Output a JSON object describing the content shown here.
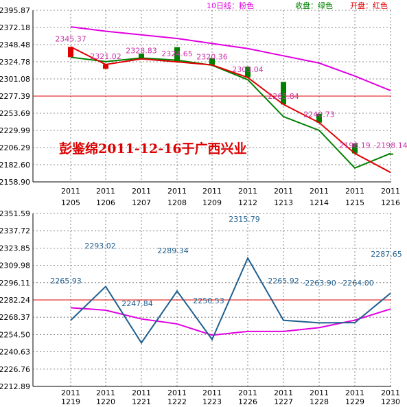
{
  "legend": {
    "ma10": "10日线：粉色",
    "close": "收盘：绿色",
    "open": "开盘：红色"
  },
  "annotation": "彭鉴绵2011-12-16于广西兴业",
  "colors": {
    "ma": "#e000e0",
    "close_line": "#008000",
    "open_line": "#e00000",
    "candle_down": "#008000",
    "candle_up": "#e00000",
    "blue_line": "#1f5f8f",
    "blue_label": "#1f5f8f",
    "pink_label": "#cc33aa",
    "ref_line": "#e00000",
    "grid": "#666666",
    "annotation": "#dd0000"
  },
  "chart_data": [
    {
      "type": "candlestick",
      "ylim": [
        2158.9,
        2395.87
      ],
      "yticks": [
        "2395.87",
        "2372.18",
        "2348.48",
        "2324.78",
        "2301.08",
        "2277.39",
        "2253.69",
        "2229.99",
        "2206.29",
        "2182.60",
        "2158.90"
      ],
      "x_top": [
        "2011",
        "2011",
        "2011",
        "2011",
        "2011",
        "2011",
        "2011",
        "2011",
        "2011",
        "2011"
      ],
      "x_bottom": [
        "1205",
        "1206",
        "1207",
        "1208",
        "1209",
        "1212",
        "1213",
        "1214",
        "1215",
        "1216"
      ],
      "open": [
        2331.0,
        2315.0,
        2336.0,
        2345.0,
        2330.0,
        2318.0,
        2297.0,
        2253.0,
        2212.0,
        2198.14
      ],
      "close": [
        2345.37,
        2321.02,
        2328.83,
        2324.65,
        2320.36,
        2303.04,
        2265.84,
        2240.73,
        2198.19,
        2198.14
      ],
      "close_series": [
        2331.0,
        2325.0,
        2330.0,
        2327.0,
        2320.0,
        2300.0,
        2249.0,
        2230.0,
        2178.0,
        2198.14
      ],
      "open_series": [
        2345.37,
        2321.02,
        2328.83,
        2324.65,
        2320.36,
        2303.04,
        2265.84,
        2240.73,
        2198.19,
        2172.0
      ],
      "ma10": [
        2373.0,
        2367.0,
        2362.0,
        2357.0,
        2350.0,
        2343.0,
        2333.0,
        2323.0,
        2305.0,
        2285.0
      ],
      "labels": [
        "2345.37",
        "2321.02",
        "2328.83",
        "2324.65",
        "2320.36",
        "2303.04",
        "2265.84",
        "2240.73",
        "2198.19",
        "-2198.14"
      ],
      "reference_value": 2277.39
    },
    {
      "type": "line",
      "ylim": [
        2212.89,
        2351.59
      ],
      "yticks": [
        "2351.59",
        "2337.72",
        "2323.85",
        "2309.98",
        "2296.11",
        "2282.24",
        "2268.37",
        "2254.50",
        "2240.63",
        "2226.76",
        "2212.89"
      ],
      "x_top": [
        "2011",
        "2011",
        "2011",
        "2011",
        "2011",
        "2011",
        "2011",
        "2011",
        "2011",
        "2011"
      ],
      "x_bottom": [
        "1219",
        "1220",
        "1221",
        "1222",
        "1223",
        "1226",
        "1227",
        "1228",
        "1229",
        "1230"
      ],
      "values": [
        2265.93,
        2293.02,
        2247.84,
        2289.34,
        2250.53,
        2315.79,
        2265.92,
        2263.9,
        2264.0,
        2287.65
      ],
      "ma": [
        2276.0,
        2274.0,
        2267.0,
        2263.0,
        2254.0,
        2257.0,
        2257.0,
        2260.0,
        2266.0,
        2275.0
      ],
      "labels": [
        "2265.93",
        "2293.02",
        "2247.84",
        "2289.34",
        "2250.53",
        "2315.79",
        "2265.92",
        "-2263.90",
        "-2264.00",
        "2287.65"
      ],
      "reference_value": 2282.24
    }
  ]
}
